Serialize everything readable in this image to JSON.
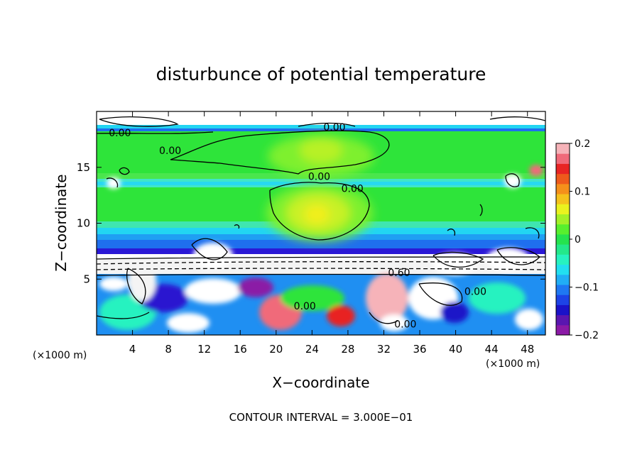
{
  "chart_data": {
    "type": "heatmap",
    "title": "disturbunce of potential temperature",
    "xlabel": "X−coordinate",
    "ylabel": "Z−coordinate",
    "x_unit_left": "(×1000 m)",
    "x_unit_right": "(×1000 m)",
    "footer": "CONTOUR INTERVAL = 3.000E−01",
    "xlim": [
      0,
      50
    ],
    "ylim": [
      0,
      20
    ],
    "x_ticks": [
      4,
      8,
      12,
      16,
      20,
      24,
      28,
      32,
      36,
      40,
      44,
      48
    ],
    "y_ticks": [
      5,
      10,
      15
    ],
    "colorbar": {
      "range": [
        -0.2,
        0.2
      ],
      "ticks": [
        {
          "value": 0.2,
          "label": "0.2"
        },
        {
          "value": 0.1,
          "label": "0.1"
        },
        {
          "value": 0,
          "label": "0"
        },
        {
          "value": -0.1,
          "label": "−0.1"
        },
        {
          "value": -0.2,
          "label": "−0.2"
        }
      ],
      "colors": [
        "#8b1aa6",
        "#5a16b0",
        "#1a12c8",
        "#1d43e6",
        "#1f78f2",
        "#21aef5",
        "#22dff0",
        "#27f2c0",
        "#24e88a",
        "#25e34e",
        "#58ef2e",
        "#a4f028",
        "#eaf21f",
        "#f5c21d",
        "#f5901b",
        "#ee5a1c",
        "#e82424",
        "#f06a7a",
        "#f6b3b9"
      ]
    },
    "contour_labels": [
      {
        "text": "0.00",
        "x": 2.6,
        "y": 18.1
      },
      {
        "text": "0.00",
        "x": 8.2,
        "y": 16.5
      },
      {
        "text": "0.00",
        "x": 26.5,
        "y": 18.6
      },
      {
        "text": "0.00",
        "x": 24.8,
        "y": 14.2
      },
      {
        "text": "0.00",
        "x": 28.5,
        "y": 13.1
      },
      {
        "text": "0.60",
        "x": 33.7,
        "y": 5.6
      },
      {
        "text": "0.00",
        "x": 42.2,
        "y": 3.9
      },
      {
        "text": "0.00",
        "x": 23.2,
        "y": 2.6
      },
      {
        "text": "0.00",
        "x": 34.4,
        "y": 1.0
      }
    ]
  }
}
